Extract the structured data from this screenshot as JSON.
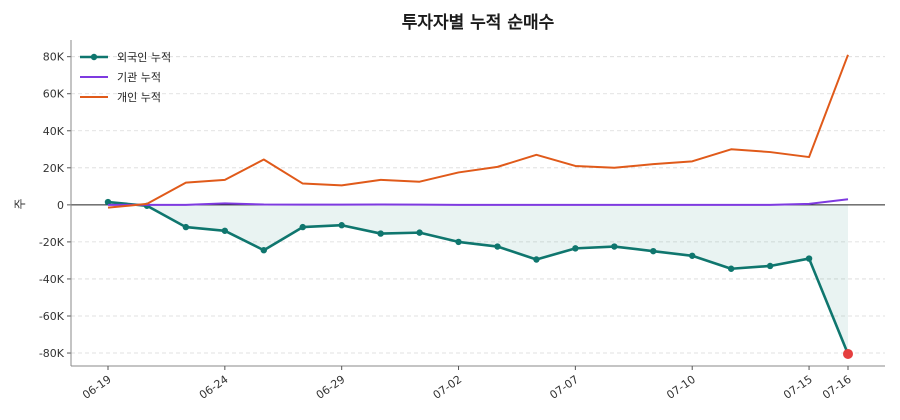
{
  "chart_data": {
    "type": "line",
    "title": "투자자별 누적 순매수",
    "xlabel": "",
    "ylabel": "주",
    "ylim": [
      -87000,
      89000
    ],
    "yticks": [
      80000,
      60000,
      40000,
      20000,
      0,
      -20000,
      -40000,
      -60000,
      -80000
    ],
    "ytick_labels": [
      "80K",
      "60K",
      "40K",
      "20K",
      "0",
      "-20K",
      "-40K",
      "-60K",
      "-80K"
    ],
    "x_index": [
      0,
      1,
      2,
      3,
      4,
      5,
      6,
      7,
      8,
      9,
      10,
      11,
      12,
      13,
      14,
      15,
      16,
      17,
      18,
      19
    ],
    "xticks": [
      {
        "i": 0,
        "label": "06-19"
      },
      {
        "i": 3,
        "label": "06-24"
      },
      {
        "i": 6,
        "label": "06-29"
      },
      {
        "i": 9,
        "label": "07-02"
      },
      {
        "i": 12,
        "label": "07-07"
      },
      {
        "i": 15,
        "label": "07-10"
      },
      {
        "i": 18,
        "label": "07-15"
      },
      {
        "i": 19,
        "label": "07-16"
      }
    ],
    "grid": true,
    "legend_position": "top-left",
    "series": [
      {
        "name": "외국인 누적",
        "color": "#0f766e",
        "markers": true,
        "fill": true,
        "values": [
          1500,
          -500,
          -12000,
          -14000,
          -24500,
          -12000,
          -11000,
          -15500,
          -15000,
          -20000,
          -22500,
          -29500,
          -23500,
          -22500,
          -25000,
          -27500,
          -34500,
          -33000,
          -29000,
          -80500
        ]
      },
      {
        "name": "기관 누적",
        "color": "#7e3ae0",
        "markers": false,
        "fill": false,
        "values": [
          0,
          0,
          0,
          800,
          200,
          100,
          100,
          200,
          100,
          0,
          0,
          0,
          0,
          0,
          0,
          0,
          0,
          0,
          500,
          3000
        ]
      },
      {
        "name": "개인 누적",
        "color": "#e05a1a",
        "markers": false,
        "fill": false,
        "values": [
          -1500,
          500,
          12000,
          13500,
          24500,
          11500,
          10500,
          13500,
          12500,
          17500,
          20500,
          27000,
          21000,
          20000,
          22000,
          23500,
          30000,
          28500,
          25800,
          81000
        ]
      }
    ],
    "highlight": {
      "series": "외국인 누적",
      "i": 19,
      "color": "#e53e3e"
    }
  }
}
